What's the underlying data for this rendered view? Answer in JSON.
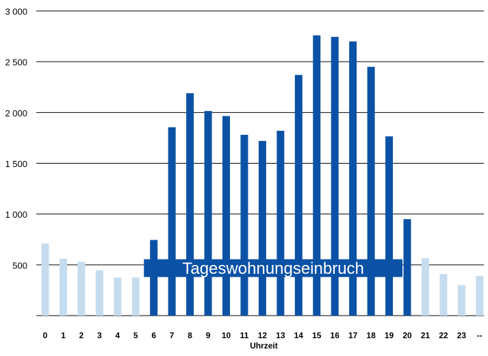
{
  "chart_data": {
    "type": "bar",
    "title": "",
    "xlabel": "Uhrzeit",
    "ylabel": "",
    "ylim": [
      0,
      3000
    ],
    "y_ticks": [
      {
        "value": 500,
        "label": "500"
      },
      {
        "value": 1000,
        "label": "1 000"
      },
      {
        "value": 1500,
        "label": "1 500"
      },
      {
        "value": 2000,
        "label": "2 000"
      },
      {
        "value": 2500,
        "label": "2 500"
      },
      {
        "value": 3000,
        "label": "3 000"
      }
    ],
    "grid": "horizontal",
    "categories": [
      "0",
      "1",
      "2",
      "3",
      "4",
      "5",
      "6",
      "7",
      "8",
      "9",
      "10",
      "11",
      "12",
      "13",
      "14",
      "15",
      "16",
      "17",
      "18",
      "19",
      "20",
      "21",
      "22",
      "23",
      "--"
    ],
    "values": [
      710,
      560,
      530,
      445,
      375,
      375,
      745,
      1855,
      2190,
      2015,
      1965,
      1780,
      1720,
      1820,
      2370,
      2760,
      2745,
      2700,
      2450,
      1765,
      950,
      565,
      410,
      300,
      390
    ],
    "highlight": [
      "off",
      "off",
      "off",
      "off",
      "off",
      "off",
      "on",
      "on",
      "on",
      "on",
      "on",
      "on",
      "on",
      "on",
      "on",
      "on",
      "on",
      "on",
      "on",
      "on",
      "on",
      "off",
      "off",
      "off",
      "off"
    ],
    "colors": {
      "highlight": "#0b52a6",
      "muted": "#c5dcef",
      "gridline": "#000000"
    },
    "annotation": {
      "text": "Tageswohnungseinbruch",
      "category_start": "5",
      "category_end": "20",
      "value_low": 380,
      "value_high": 555,
      "color": "#0b52a6"
    }
  }
}
